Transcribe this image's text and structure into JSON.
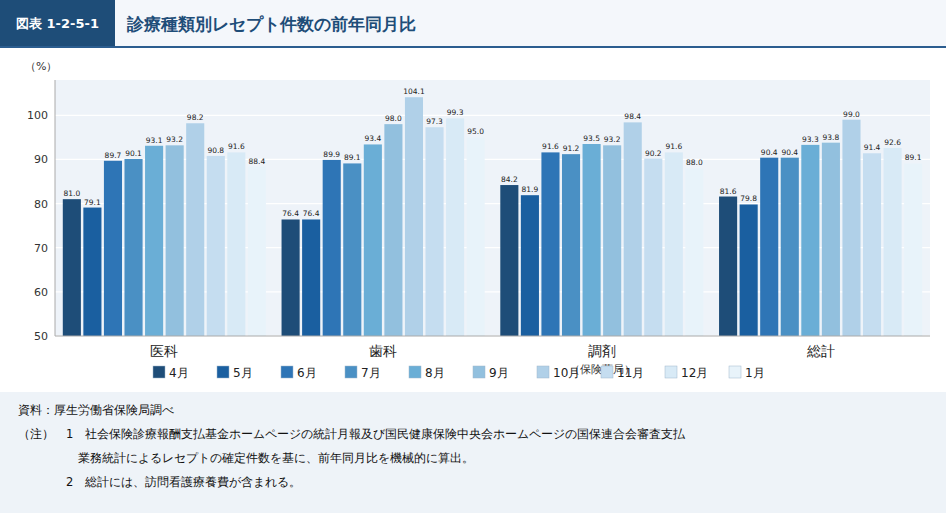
{
  "chart_data": {
    "type": "bar",
    "title": "診療種類別レセプト件数の前年同月比",
    "subtitle": "図表 1-2-5-1",
    "ylabel": "（%）",
    "categories": [
      "医科",
      "歯科",
      "調剤",
      "総計"
    ],
    "series": [
      {
        "name": "4月",
        "color": "#1e4d78",
        "values": [
          81.0,
          76.4,
          84.2,
          81.6
        ],
        "value_labels": [
          "81.0",
          "76.4",
          "84.2",
          "81.6"
        ]
      },
      {
        "name": "5月",
        "color": "#1a5fa0",
        "values": [
          79.1,
          76.4,
          81.9,
          79.8
        ],
        "value_labels": [
          "79.1",
          "76.4",
          "81.9",
          "79.8"
        ]
      },
      {
        "name": "6月",
        "color": "#2e75b6",
        "values": [
          89.7,
          89.9,
          91.6,
          90.4
        ],
        "value_labels": [
          "89.7",
          "89.9",
          "91.6",
          "90.4"
        ]
      },
      {
        "name": "7月",
        "color": "#4a90c4",
        "values": [
          90.1,
          89.1,
          91.2,
          90.4
        ],
        "value_labels": [
          "90.1",
          "89.1",
          "91.2",
          "90.4"
        ]
      },
      {
        "name": "8月",
        "color": "#6aaed6",
        "values": [
          93.1,
          93.4,
          93.5,
          93.3
        ],
        "value_labels": [
          "93.1",
          "93.4",
          "93.5",
          "93.3"
        ]
      },
      {
        "name": "9月",
        "color": "#92c0de",
        "values": [
          93.2,
          98.0,
          93.2,
          93.8
        ],
        "value_labels": [
          "93.2",
          "98.0",
          "93.2",
          "93.8"
        ]
      },
      {
        "name": "10月",
        "color": "#b0d0e8",
        "values": [
          98.2,
          104.1,
          98.4,
          99.0
        ],
        "value_labels": [
          "98.2",
          "104.1",
          "98.4",
          "99.0"
        ]
      },
      {
        "name": "11月",
        "color": "#c5ddf0",
        "values": [
          90.8,
          97.3,
          90.2,
          91.4
        ],
        "value_labels": [
          "90.8",
          "97.3",
          "90.2",
          "91.4"
        ]
      },
      {
        "name": "12月",
        "color": "#d8eaf6",
        "values": [
          91.6,
          99.3,
          91.6,
          92.6
        ],
        "value_labels": [
          "91.6",
          "99.3",
          "91.6",
          "92.6"
        ]
      },
      {
        "name": "1月",
        "color": "#e8f3fa",
        "values": [
          88.4,
          95.0,
          88.0,
          89.1
        ],
        "value_labels": [
          "88.4",
          "95.0",
          "88.0",
          "89.1"
        ]
      }
    ],
    "ylim": [
      50,
      108
    ],
    "yticks": [
      50,
      60,
      70,
      80,
      90,
      100
    ],
    "grid": true,
    "legend": "bottom",
    "data_labels": true,
    "annotations": [
      {
        "text": "（保険薬局）",
        "category": "調剤"
      },
      {
        "text": "資料：厚生労働省保険局調べ"
      },
      {
        "text": "（注）　1　社会保険診療報酬支払基金ホームページの統計月報及び国民健康保険中央会ホームページの国保連合会審査支払"
      },
      {
        "text": "　　　　　業務統計によるレセプトの確定件数を基に、前年同月比を機械的に算出。"
      },
      {
        "text": "　　　　2　総計には、訪問看護療養費が含まれる。"
      }
    ]
  }
}
